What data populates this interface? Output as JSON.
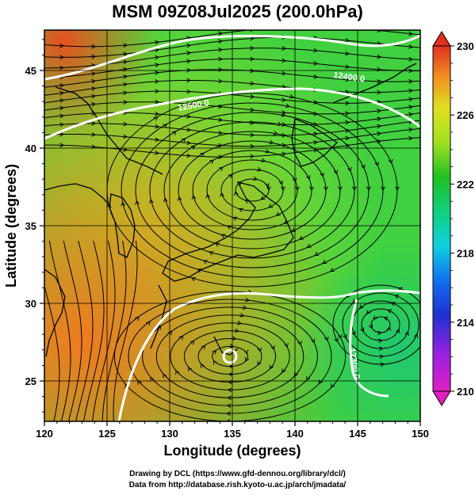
{
  "title": "MSM 09Z08Jul2025 (200.0hPa)",
  "credits": {
    "line1": "Drawing by DCL (https://www.gfd-dennou.org/library/dcl/)",
    "line2": "Data from http://database.rish.kyoto-u.ac.jp/arch/jmadata/"
  },
  "axes": {
    "xlabel": "Longitude (degrees)",
    "ylabel": "Latitude  (degrees)",
    "xlim": [
      120,
      150
    ],
    "ylim": [
      22.4,
      47.6
    ],
    "xticks": [
      "120",
      "125",
      "130",
      "135",
      "140",
      "145",
      "150"
    ],
    "yticks": [
      "25",
      "30",
      "35",
      "40",
      "45"
    ],
    "grid": true
  },
  "colorbar": {
    "range": [
      210,
      230
    ],
    "ticks": [
      "210",
      "214",
      "218",
      "222",
      "226",
      "230"
    ],
    "colors": {
      "c210": "#e020c0",
      "c212": "#a020e0",
      "c214": "#2030d0",
      "c216": "#1070f0",
      "c218": "#10d0e0",
      "c220": "#10d080",
      "c222": "#20c020",
      "c224": "#a0e020",
      "c226": "#e0e020",
      "c228": "#f09020",
      "c230": "#e03020"
    }
  },
  "contours": {
    "labels": [
      "12400.0",
      "12300.0",
      "12500.0"
    ],
    "color": "#ffffff"
  }
}
